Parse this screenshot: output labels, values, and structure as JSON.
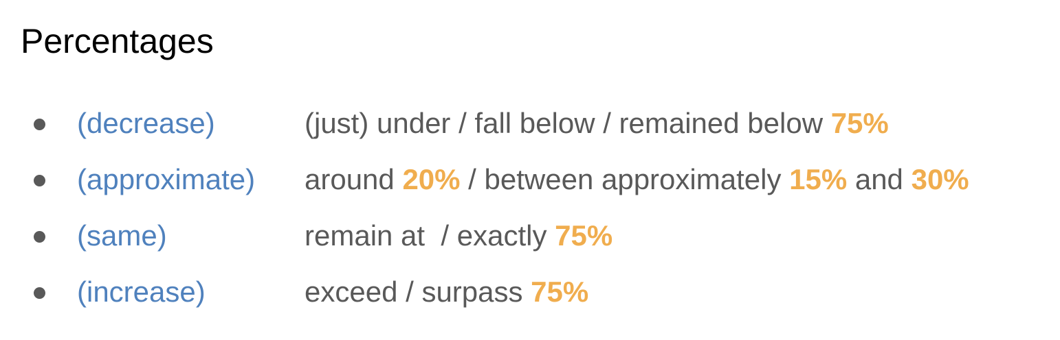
{
  "title": "Percentages",
  "accent_colors": {
    "category": "#4f81bd",
    "text": "#595959",
    "number": "#f0ad4e",
    "bullet": "#595959"
  },
  "items": [
    {
      "category": "(decrease)",
      "parts": [
        "(just) under / fall below / remained below ",
        "75%"
      ]
    },
    {
      "category": "(approximate)",
      "parts": [
        "around ",
        "20%",
        " / between approximately ",
        "15%",
        " and ",
        "30%"
      ]
    },
    {
      "category": "(same)",
      "parts": [
        "remain at  / exactly ",
        "75%"
      ]
    },
    {
      "category": "(increase)",
      "parts": [
        "exceed / surpass ",
        "75%"
      ]
    }
  ]
}
